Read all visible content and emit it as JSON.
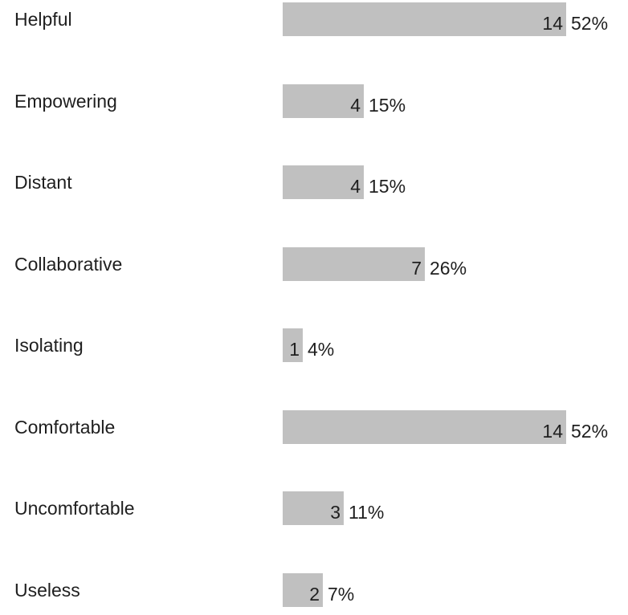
{
  "chart_data": {
    "type": "bar",
    "orientation": "horizontal",
    "categories": [
      "Helpful",
      "Empowering",
      "Distant",
      "Collaborative",
      "Isolating",
      "Comfortable",
      "Uncomfortable",
      "Useless"
    ],
    "values": [
      14,
      4,
      4,
      7,
      1,
      14,
      3,
      2
    ],
    "percentages": [
      "52%",
      "15%",
      "15%",
      "26%",
      "4%",
      "52%",
      "11%",
      "7%"
    ],
    "bar_color": "#c0c0c0",
    "title": "",
    "xlabel": "",
    "ylabel": "",
    "xlim": [
      0,
      14
    ],
    "grid": false
  }
}
